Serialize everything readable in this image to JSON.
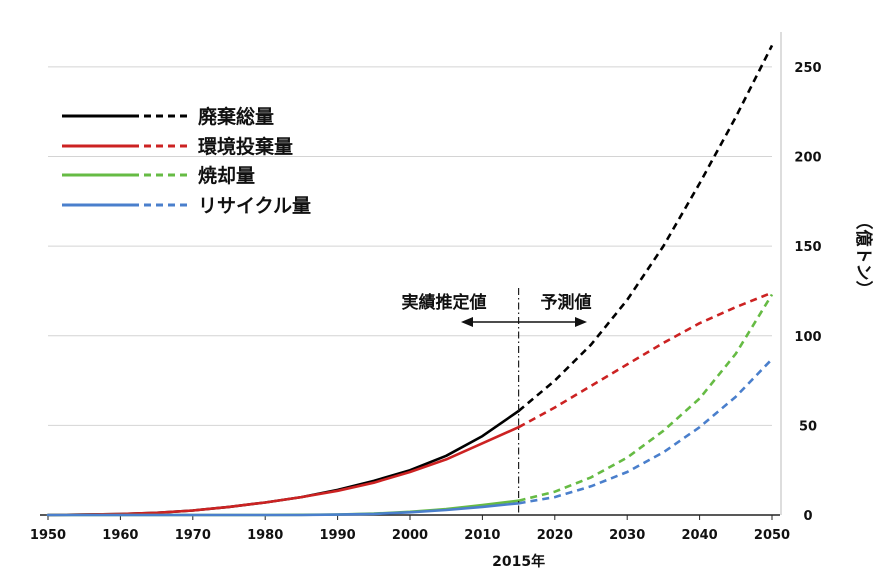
{
  "chart_data": {
    "type": "line",
    "x_ticks": [
      "1950",
      "1960",
      "1970",
      "1980",
      "1990",
      "2000",
      "2010",
      "2020",
      "2030",
      "2040",
      "2050"
    ],
    "y_ticks": [
      "0",
      "50",
      "100",
      "150",
      "200",
      "250"
    ],
    "xlim": [
      1950,
      2050
    ],
    "ylim": [
      0,
      265
    ],
    "y_axis_side": "right",
    "y_unit": "（億トン）",
    "grid": "horizontal",
    "legend_position": "top-left",
    "marker": {
      "x": 2015,
      "label": "2015年"
    },
    "annotations": {
      "left": "実績推定値",
      "right": "予測値"
    },
    "style": {
      "actual": "solid",
      "forecast": "dashed"
    },
    "series": [
      {
        "name": "廃棄総量",
        "color": "#000000",
        "points": [
          [
            1950,
            0
          ],
          [
            1955,
            0.2
          ],
          [
            1960,
            0.5
          ],
          [
            1965,
            1.2
          ],
          [
            1970,
            2.5
          ],
          [
            1975,
            4.5
          ],
          [
            1980,
            7
          ],
          [
            1985,
            10
          ],
          [
            1990,
            14
          ],
          [
            1995,
            19
          ],
          [
            2000,
            25
          ],
          [
            2005,
            33
          ],
          [
            2010,
            44
          ],
          [
            2015,
            58
          ],
          [
            2020,
            75
          ],
          [
            2025,
            95
          ],
          [
            2030,
            120
          ],
          [
            2035,
            150
          ],
          [
            2040,
            185
          ],
          [
            2045,
            222
          ],
          [
            2050,
            262
          ]
        ]
      },
      {
        "name": "環境投棄量",
        "color": "#cc2222",
        "points": [
          [
            1950,
            0
          ],
          [
            1955,
            0.2
          ],
          [
            1960,
            0.5
          ],
          [
            1965,
            1.2
          ],
          [
            1970,
            2.5
          ],
          [
            1975,
            4.5
          ],
          [
            1980,
            7
          ],
          [
            1985,
            10
          ],
          [
            1990,
            13.5
          ],
          [
            1995,
            18
          ],
          [
            2000,
            24
          ],
          [
            2005,
            31
          ],
          [
            2010,
            40
          ],
          [
            2015,
            49
          ],
          [
            2020,
            60
          ],
          [
            2025,
            72
          ],
          [
            2030,
            84
          ],
          [
            2035,
            96
          ],
          [
            2040,
            107
          ],
          [
            2045,
            116
          ],
          [
            2050,
            124
          ]
        ]
      },
      {
        "name": "焼却量",
        "color": "#66bb44",
        "points": [
          [
            1950,
            0
          ],
          [
            1960,
            0
          ],
          [
            1970,
            0
          ],
          [
            1980,
            0
          ],
          [
            1985,
            0.1
          ],
          [
            1990,
            0.3
          ],
          [
            1995,
            0.8
          ],
          [
            2000,
            1.8
          ],
          [
            2005,
            3.3
          ],
          [
            2010,
            5.5
          ],
          [
            2015,
            8
          ],
          [
            2020,
            13
          ],
          [
            2025,
            21
          ],
          [
            2030,
            32
          ],
          [
            2035,
            47
          ],
          [
            2040,
            65
          ],
          [
            2045,
            90
          ],
          [
            2050,
            123
          ]
        ]
      },
      {
        "name": "リサイクル量",
        "color": "#4a7fcc",
        "points": [
          [
            1950,
            0
          ],
          [
            1960,
            0
          ],
          [
            1970,
            0
          ],
          [
            1980,
            0
          ],
          [
            1985,
            0
          ],
          [
            1990,
            0.2
          ],
          [
            1995,
            0.6
          ],
          [
            2000,
            1.5
          ],
          [
            2005,
            2.8
          ],
          [
            2010,
            4.5
          ],
          [
            2015,
            6.5
          ],
          [
            2020,
            10
          ],
          [
            2025,
            16
          ],
          [
            2030,
            24
          ],
          [
            2035,
            35
          ],
          [
            2040,
            49
          ],
          [
            2045,
            66
          ],
          [
            2050,
            87
          ]
        ]
      }
    ]
  }
}
